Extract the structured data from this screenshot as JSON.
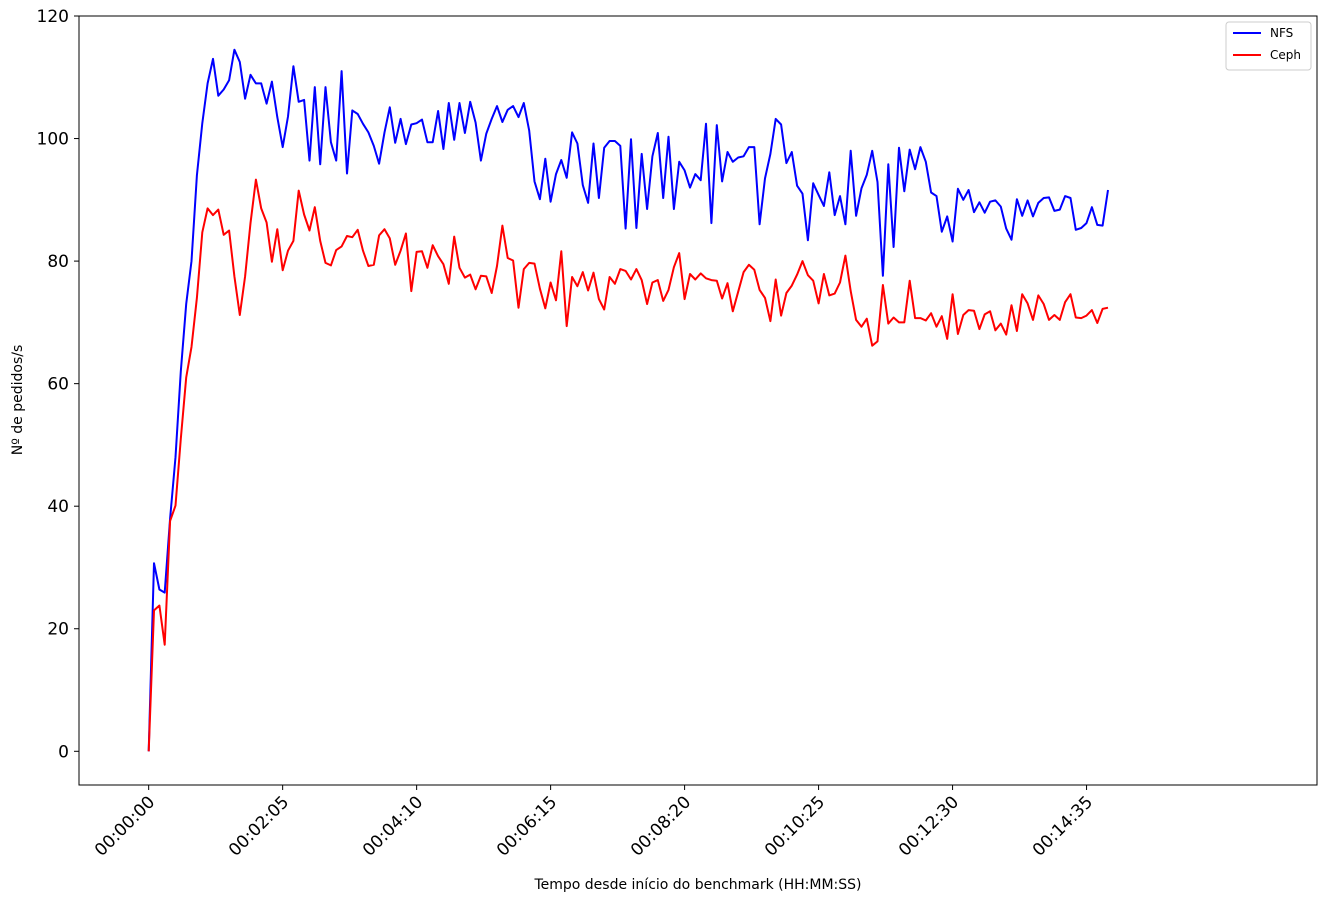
{
  "chart_data": {
    "type": "line",
    "title": "",
    "xlabel": "Tempo desde início do benchmark (HH:MM:SS)",
    "ylabel": "Nº de pedidos/s",
    "xlim": [
      -65,
      1090
    ],
    "ylim": [
      -5.5,
      120
    ],
    "x_tick_seconds": [
      0,
      125,
      250,
      375,
      500,
      625,
      750,
      875
    ],
    "x_tick_labels": [
      "00:00:00",
      "00:02:05",
      "00:04:10",
      "00:06:15",
      "00:08:20",
      "00:10:25",
      "00:12:30",
      "00:14:35"
    ],
    "y_ticks": [
      0,
      20,
      40,
      60,
      80,
      100,
      120
    ],
    "y_tick_labels": [
      "0",
      "20",
      "40",
      "60",
      "80",
      "100",
      "120"
    ],
    "grid": false,
    "legend_position": "top-right",
    "x_step_seconds": 5,
    "series": [
      {
        "name": "NFS",
        "color": "#0000ff",
        "values": [
          0,
          30.7,
          26.4,
          25.9,
          38.0,
          48.0,
          62.0,
          73.0,
          80.0,
          94.0,
          102.5,
          109.0,
          113.0,
          107.0,
          108.0,
          109.5,
          114.5,
          112.5,
          106.5,
          110.4,
          109.0,
          109.0,
          105.7,
          109.3,
          103.5,
          98.6,
          103.6,
          111.8,
          106.0,
          106.3,
          96.4,
          108.4,
          95.8,
          108.4,
          99.4,
          96.4,
          111.0,
          94.3,
          104.6,
          104.0,
          102.4,
          101.0,
          98.8,
          95.9,
          101.0,
          105.1,
          99.3,
          103.2,
          99.1,
          102.3,
          102.5,
          103.1,
          99.4,
          99.4,
          104.5,
          98.3,
          105.8,
          99.8,
          105.8,
          100.9,
          106.0,
          102.6,
          96.4,
          100.8,
          103.2,
          105.3,
          102.7,
          104.7,
          105.3,
          103.5,
          105.8,
          101.3,
          93.0,
          90.1,
          96.7,
          89.7,
          94.2,
          96.5,
          93.6,
          101.0,
          99.2,
          92.4,
          89.5,
          99.2,
          90.3,
          98.5,
          99.6,
          99.6,
          98.8,
          85.3,
          99.9,
          85.4,
          97.5,
          88.5,
          97.1,
          100.9,
          90.3,
          100.3,
          88.5,
          96.2,
          94.8,
          92.0,
          94.2,
          93.2,
          102.4,
          86.2,
          102.2,
          93.0,
          97.8,
          96.2,
          96.9,
          97.1,
          98.6,
          98.6,
          86.0,
          93.5,
          97.5,
          103.2,
          102.3,
          96.0,
          97.8,
          92.3,
          91.0,
          83.4,
          92.7,
          90.8,
          89.0,
          94.5,
          87.5,
          90.6,
          86.0,
          98.0,
          87.4,
          91.9,
          94.1,
          98.0,
          92.9,
          77.6,
          95.8,
          82.3,
          98.5,
          91.4,
          98.2,
          95.0,
          98.6,
          96.2,
          91.2,
          90.6,
          84.8,
          87.3,
          83.2,
          91.8,
          90.0,
          91.6,
          88.0,
          89.6,
          87.9,
          89.7,
          89.9,
          88.9,
          85.3,
          83.5,
          90.1,
          87.4,
          89.9,
          87.3,
          89.5,
          90.3,
          90.4,
          88.2,
          88.4,
          90.6,
          90.3,
          85.1,
          85.4,
          86.2,
          88.8,
          85.9,
          85.8,
          91.6
        ]
      },
      {
        "name": "Ceph",
        "color": "#ff0000",
        "values": [
          0,
          23.0,
          23.8,
          17.4,
          37.6,
          40.1,
          51.0,
          61.0,
          66.0,
          74.0,
          84.7,
          88.6,
          87.5,
          88.4,
          84.3,
          85.0,
          77.5,
          71.2,
          77.5,
          86.2,
          93.3,
          88.6,
          86.3,
          79.9,
          85.2,
          78.5,
          81.7,
          83.3,
          91.5,
          87.6,
          85.0,
          88.8,
          83.3,
          79.7,
          79.3,
          81.8,
          82.4,
          84.1,
          83.9,
          85.1,
          81.7,
          79.2,
          79.4,
          84.2,
          85.2,
          83.7,
          79.4,
          81.7,
          84.5,
          75.1,
          81.5,
          81.6,
          78.9,
          82.6,
          80.8,
          79.5,
          76.3,
          84.0,
          78.9,
          77.3,
          77.8,
          75.4,
          77.6,
          77.5,
          74.8,
          79.2,
          85.8,
          80.5,
          80.1,
          72.4,
          78.7,
          79.7,
          79.6,
          75.5,
          72.3,
          76.5,
          73.6,
          81.6,
          69.4,
          77.4,
          75.9,
          78.2,
          75.2,
          78.1,
          73.8,
          72.1,
          77.4,
          76.3,
          78.7,
          78.4,
          77.0,
          78.7,
          76.9,
          73.0,
          76.5,
          76.9,
          73.5,
          75.3,
          79.0,
          81.3,
          73.8,
          77.9,
          77.0,
          78.0,
          77.2,
          76.9,
          76.8,
          73.9,
          76.4,
          71.8,
          75.0,
          78.2,
          79.4,
          78.6,
          75.3,
          74.0,
          70.2,
          77.0,
          71.1,
          74.8,
          76.0,
          77.8,
          80.0,
          77.7,
          76.8,
          73.1,
          77.9,
          74.4,
          74.7,
          76.5,
          80.9,
          75.1,
          70.4,
          69.3,
          70.6,
          66.2,
          66.9,
          76.1,
          69.8,
          70.8,
          70.0,
          70.0,
          76.8,
          70.7,
          70.7,
          70.3,
          71.5,
          69.3,
          71.0,
          67.3,
          74.6,
          68.1,
          71.2,
          72.0,
          71.9,
          68.9,
          71.3,
          71.8,
          68.7,
          69.8,
          68.0,
          72.8,
          68.6,
          74.6,
          73.1,
          70.4,
          74.4,
          73.0,
          70.4,
          71.2,
          70.4,
          73.3,
          74.6,
          70.8,
          70.7,
          71.1,
          72.0,
          69.9,
          72.2,
          72.4
        ]
      }
    ]
  }
}
